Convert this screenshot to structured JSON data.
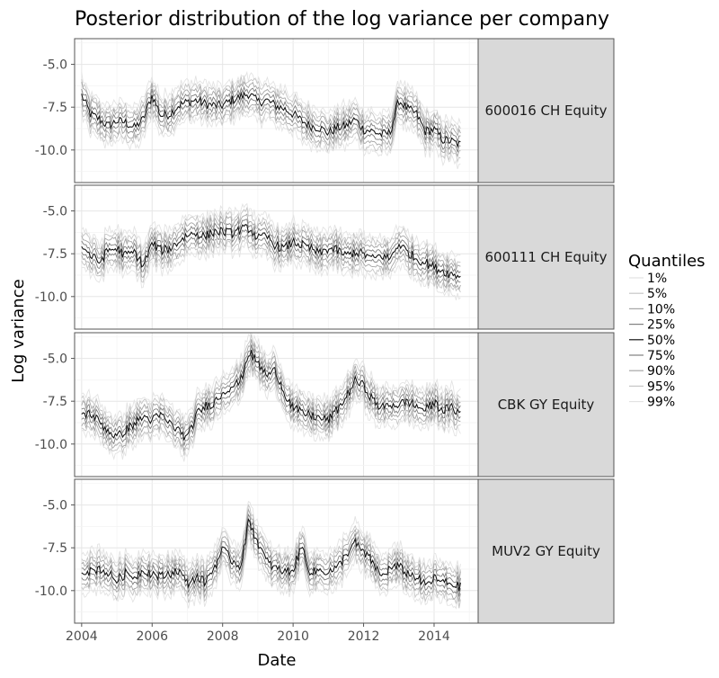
{
  "chart_data": {
    "type": "line",
    "title": "Posterior distribution of the log variance per company",
    "xlabel": "Date",
    "ylabel": "Log variance",
    "xlim": [
      2003.8,
      2015.25
    ],
    "ylim": [
      -11.9,
      -3.5
    ],
    "x_ticks": [
      {
        "value": 2004,
        "label": "2004"
      },
      {
        "value": 2006,
        "label": "2006"
      },
      {
        "value": 2008,
        "label": "2008"
      },
      {
        "value": 2010,
        "label": "2010"
      },
      {
        "value": 2012,
        "label": "2012"
      },
      {
        "value": 2014,
        "label": "2014"
      }
    ],
    "y_ticks": [
      {
        "value": -5.0,
        "label": "-5.0"
      },
      {
        "value": -7.5,
        "label": "-7.5"
      },
      {
        "value": -10.0,
        "label": "-10.0"
      }
    ],
    "grid": true,
    "legend": {
      "title": "Quantiles",
      "placement": "right",
      "entries": [
        {
          "label": "1%",
          "color": "#e3e3e3"
        },
        {
          "label": "5%",
          "color": "#c6c6c6"
        },
        {
          "label": "10%",
          "color": "#a6a6a6"
        },
        {
          "label": "25%",
          "color": "#808080"
        },
        {
          "label": "50%",
          "color": "#141414"
        },
        {
          "label": "75%",
          "color": "#808080"
        },
        {
          "label": "90%",
          "color": "#a6a6a6"
        },
        {
          "label": "95%",
          "color": "#c6c6c6"
        },
        {
          "label": "99%",
          "color": "#e3e3e3"
        }
      ]
    },
    "quantile_offsets": {
      "1%": 1.15,
      "5%": 0.85,
      "10%": 0.6,
      "25%": 0.3,
      "50%": 0.0,
      "75%": -0.3,
      "90%": -0.6,
      "95%": -0.85,
      "99%": -1.15
    },
    "panels": [
      {
        "label": "600016 CH Equity",
        "median_x": [
          2004.0,
          2004.25,
          2004.5,
          2004.75,
          2005.0,
          2005.25,
          2005.5,
          2005.75,
          2006.0,
          2006.25,
          2006.5,
          2006.75,
          2007.0,
          2007.25,
          2007.5,
          2007.75,
          2008.0,
          2008.25,
          2008.5,
          2008.75,
          2009.0,
          2009.25,
          2009.5,
          2009.75,
          2010.0,
          2010.25,
          2010.5,
          2010.75,
          2011.0,
          2011.25,
          2011.5,
          2011.75,
          2012.0,
          2012.25,
          2012.5,
          2012.75,
          2013.0,
          2013.25,
          2013.5,
          2013.75,
          2014.0,
          2014.25,
          2014.5,
          2014.75
        ],
        "median_y": [
          -6.8,
          -7.9,
          -8.2,
          -8.6,
          -8.3,
          -8.4,
          -8.7,
          -8.2,
          -6.8,
          -8.0,
          -7.9,
          -7.4,
          -7.2,
          -7.1,
          -7.3,
          -7.4,
          -7.4,
          -7.1,
          -6.9,
          -6.7,
          -7.2,
          -7.1,
          -7.4,
          -7.6,
          -7.9,
          -8.3,
          -8.6,
          -8.7,
          -9.0,
          -8.7,
          -8.6,
          -8.2,
          -8.8,
          -8.9,
          -9.1,
          -9.0,
          -7.1,
          -7.6,
          -7.9,
          -8.9,
          -8.8,
          -9.4,
          -9.5,
          -9.7
        ]
      },
      {
        "label": "600111 CH Equity",
        "median_x": [
          2004.0,
          2004.25,
          2004.5,
          2004.75,
          2005.0,
          2005.25,
          2005.5,
          2005.75,
          2006.0,
          2006.25,
          2006.5,
          2006.75,
          2007.0,
          2007.25,
          2007.5,
          2007.75,
          2008.0,
          2008.25,
          2008.5,
          2008.75,
          2009.0,
          2009.25,
          2009.5,
          2009.75,
          2010.0,
          2010.25,
          2010.5,
          2010.75,
          2011.0,
          2011.25,
          2011.5,
          2011.75,
          2012.0,
          2012.25,
          2012.5,
          2012.75,
          2013.0,
          2013.25,
          2013.5,
          2013.75,
          2014.0,
          2014.25,
          2014.5,
          2014.75
        ],
        "median_y": [
          -7.0,
          -7.6,
          -8.0,
          -7.3,
          -7.2,
          -7.6,
          -7.4,
          -8.2,
          -6.9,
          -7.3,
          -7.2,
          -6.8,
          -6.4,
          -6.3,
          -6.5,
          -6.2,
          -6.2,
          -6.3,
          -6.1,
          -6.0,
          -6.6,
          -6.5,
          -7.0,
          -7.2,
          -6.8,
          -7.0,
          -7.2,
          -7.5,
          -7.2,
          -7.3,
          -7.6,
          -7.4,
          -7.5,
          -7.8,
          -7.6,
          -7.8,
          -6.9,
          -7.4,
          -7.8,
          -8.0,
          -8.3,
          -8.5,
          -8.7,
          -8.8
        ]
      },
      {
        "label": "CBK GY Equity",
        "median_x": [
          2004.0,
          2004.25,
          2004.5,
          2004.75,
          2005.0,
          2005.25,
          2005.5,
          2005.75,
          2006.0,
          2006.25,
          2006.5,
          2006.75,
          2007.0,
          2007.25,
          2007.5,
          2007.75,
          2008.0,
          2008.25,
          2008.5,
          2008.75,
          2009.0,
          2009.25,
          2009.5,
          2009.75,
          2010.0,
          2010.25,
          2010.5,
          2010.75,
          2011.0,
          2011.25,
          2011.5,
          2011.75,
          2012.0,
          2012.25,
          2012.5,
          2012.75,
          2013.0,
          2013.25,
          2013.5,
          2013.75,
          2014.0,
          2014.25,
          2014.5,
          2014.75
        ],
        "median_y": [
          -8.3,
          -8.2,
          -8.7,
          -9.2,
          -9.6,
          -9.2,
          -8.8,
          -8.4,
          -8.6,
          -8.3,
          -8.8,
          -9.2,
          -9.7,
          -8.3,
          -7.8,
          -7.6,
          -7.0,
          -6.6,
          -6.4,
          -4.6,
          -5.3,
          -6.0,
          -5.7,
          -7.0,
          -7.9,
          -8.2,
          -8.3,
          -8.5,
          -8.6,
          -8.0,
          -7.3,
          -6.3,
          -6.6,
          -7.4,
          -7.9,
          -7.7,
          -7.7,
          -7.5,
          -7.8,
          -8.0,
          -7.6,
          -8.0,
          -7.9,
          -8.2
        ]
      },
      {
        "label": "MUV2 GY Equity",
        "median_x": [
          2004.0,
          2004.25,
          2004.5,
          2004.75,
          2005.0,
          2005.25,
          2005.5,
          2005.75,
          2006.0,
          2006.25,
          2006.5,
          2006.75,
          2007.0,
          2007.25,
          2007.5,
          2007.75,
          2008.0,
          2008.25,
          2008.5,
          2008.75,
          2009.0,
          2009.25,
          2009.5,
          2009.75,
          2010.0,
          2010.25,
          2010.5,
          2010.75,
          2011.0,
          2011.25,
          2011.5,
          2011.75,
          2012.0,
          2012.25,
          2012.5,
          2012.75,
          2013.0,
          2013.25,
          2013.5,
          2013.75,
          2014.0,
          2014.25,
          2014.5,
          2014.75
        ],
        "median_y": [
          -8.8,
          -8.9,
          -8.7,
          -9.0,
          -9.4,
          -9.0,
          -9.2,
          -8.8,
          -9.0,
          -9.2,
          -9.0,
          -8.8,
          -9.6,
          -9.2,
          -9.5,
          -8.7,
          -7.6,
          -8.2,
          -8.6,
          -5.9,
          -7.2,
          -8.3,
          -8.7,
          -8.9,
          -8.8,
          -7.4,
          -9.0,
          -8.8,
          -8.9,
          -8.7,
          -7.9,
          -7.2,
          -7.8,
          -8.3,
          -9.2,
          -8.7,
          -8.6,
          -9.0,
          -9.2,
          -9.7,
          -9.3,
          -9.5,
          -9.6,
          -9.8
        ]
      }
    ]
  }
}
